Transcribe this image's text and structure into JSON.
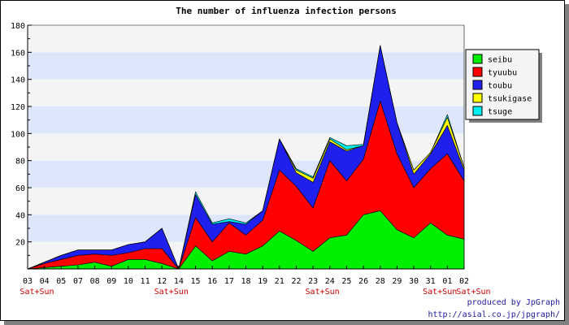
{
  "chart_data": {
    "type": "area",
    "stacked": true,
    "title": "The number of influenza infection persons",
    "categories": [
      "03",
      "04",
      "05",
      "07",
      "08",
      "09",
      "10",
      "11",
      "12",
      "14",
      "15",
      "16",
      "17",
      "18",
      "19",
      "21",
      "22",
      "23",
      "24",
      "25",
      "26",
      "28",
      "29",
      "30",
      "31",
      "01",
      "02"
    ],
    "weekend_label": "Sat+Sun",
    "weekend_after_index": [
      0,
      8,
      17,
      24,
      26
    ],
    "ylim": [
      0,
      180
    ],
    "yticks": [
      20,
      40,
      60,
      80,
      100,
      120,
      140,
      160,
      180
    ],
    "ytick_labels": [
      "20",
      "40",
      "60",
      "80",
      "100",
      "120",
      "140",
      "160",
      "180"
    ],
    "grid": true,
    "legend_position": "right",
    "series": [
      {
        "name": "seibu",
        "color": "#00ee00",
        "values": [
          0,
          1,
          2,
          3,
          5,
          2,
          7,
          7,
          4,
          0,
          17,
          6,
          13,
          11,
          17,
          28,
          21,
          13,
          23,
          25,
          40,
          43,
          29,
          23,
          34,
          25,
          22
        ]
      },
      {
        "name": "tyuubu",
        "color": "#ff0000",
        "values": [
          0,
          3,
          5,
          7,
          6,
          8,
          5,
          8,
          11,
          0,
          21,
          14,
          21,
          14,
          19,
          45,
          40,
          32,
          57,
          40,
          41,
          81,
          56,
          37,
          40,
          60,
          43
        ]
      },
      {
        "name": "toubu",
        "color": "#2020ee",
        "values": [
          0,
          1,
          3,
          4,
          3,
          4,
          6,
          5,
          15,
          0,
          17,
          13,
          1,
          8,
          7,
          23,
          10,
          19,
          14,
          22,
          10,
          41,
          23,
          10,
          11,
          21,
          8
        ]
      },
      {
        "name": "tsukigase",
        "color": "#ffff00",
        "values": [
          0,
          0,
          0,
          0,
          0,
          0,
          0,
          0,
          0,
          0,
          0,
          0,
          0,
          0,
          0,
          0,
          2,
          3,
          2,
          1,
          0,
          0,
          0,
          3,
          1,
          6,
          2
        ]
      },
      {
        "name": "tsuge",
        "color": "#00eeee",
        "values": [
          0,
          0,
          0,
          0,
          0,
          0,
          0,
          0,
          0,
          0,
          2,
          1,
          2,
          1,
          0,
          0,
          1,
          1,
          1,
          3,
          1,
          0,
          0,
          0,
          0,
          2,
          0
        ]
      }
    ]
  },
  "footer": {
    "credit_line1": "produced by JpGraph",
    "credit_line2": "http://asial.co.jp/jpgraph/"
  }
}
